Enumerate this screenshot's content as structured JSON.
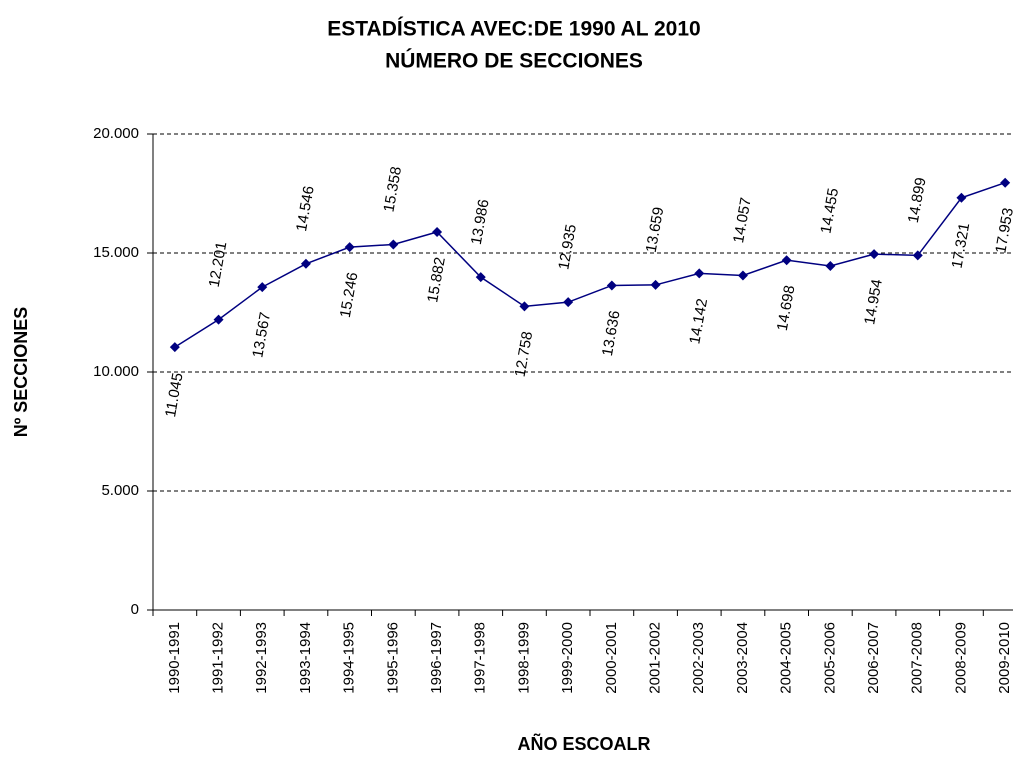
{
  "chart_data": {
    "type": "line",
    "title": "ESTADÍSTICA AVEC:DE 1990 AL 2010",
    "subtitle": "NÚMERO DE SECCIONES",
    "x_label": "AÑO ESCOALR",
    "y_label": "Nº SECCIONES",
    "categories": [
      "1990-1991",
      "1991-1992",
      "1992-1993",
      "1993-1994",
      "1994-1995",
      "1995-1996",
      "1996-1997",
      "1997-1998",
      "1998-1999",
      "1999-2000",
      "2000-2001",
      "2001-2002",
      "2002-2003",
      "2003-2004",
      "2004-2005",
      "2005-2006",
      "2006-2007",
      "2007-2008",
      "2008-2009",
      "2009-2010"
    ],
    "series": [
      {
        "name": "Nº SECCIONES",
        "color": "#000080",
        "values": [
          11045,
          12201,
          13567,
          14546,
          15246,
          15358,
          15882,
          13986,
          12758,
          12935,
          13636,
          13659,
          14142,
          14057,
          14698,
          14455,
          14954,
          14899,
          17321,
          17953
        ],
        "value_labels": [
          "11.045",
          "12.201",
          "13.567",
          "14.546",
          "15.246",
          "15.358",
          "15.882",
          "13.986",
          "12.758",
          "12.935",
          "13.636",
          "13.659",
          "14.142",
          "14.057",
          "14.698",
          "14.455",
          "14.954",
          "14.899",
          "17.321",
          "17.953"
        ]
      }
    ],
    "ylim": [
      0,
      20000
    ],
    "yticks": [
      0,
      {
        "value": 5000,
        "label": "5.000"
      },
      {
        "value": 10000,
        "label": "10.000"
      },
      {
        "value": 15000,
        "label": "15.000"
      },
      {
        "value": 20000,
        "label": "20.000"
      }
    ],
    "grid": true
  }
}
